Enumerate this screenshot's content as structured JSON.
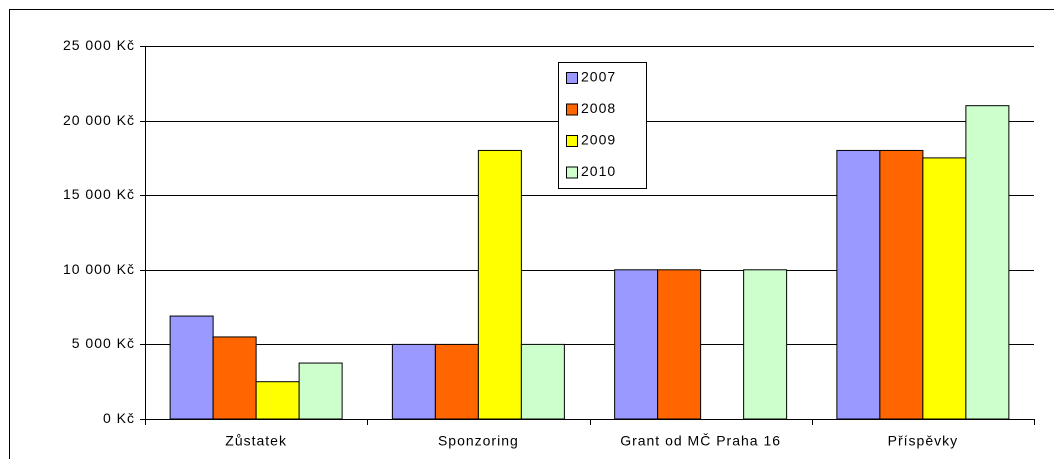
{
  "chart_data": {
    "type": "bar",
    "categories": [
      "Zůstatek",
      "Sponzoring",
      "Grant od MČ Praha 16",
      "Příspěvky"
    ],
    "series": [
      {
        "name": "2007",
        "color": "#9999ff",
        "values": [
          6900,
          5000,
          10000,
          18000
        ]
      },
      {
        "name": "2008",
        "color": "#ff6600",
        "values": [
          5500,
          5000,
          10000,
          18000
        ]
      },
      {
        "name": "2009",
        "color": "#ffff00",
        "values": [
          2500,
          18000,
          0,
          17500
        ]
      },
      {
        "name": "2010",
        "color": "#ccffcc",
        "values": [
          3750,
          5000,
          10000,
          21000
        ]
      }
    ],
    "ylim": [
      0,
      25000
    ],
    "yticks": [
      {
        "value": 0,
        "label": "0 Kč"
      },
      {
        "value": 5000,
        "label": "5 000 Kč"
      },
      {
        "value": 10000,
        "label": "10 000 Kč"
      },
      {
        "value": 15000,
        "label": "15 000 Kč"
      },
      {
        "value": 20000,
        "label": "20 000 Kč"
      },
      {
        "value": 25000,
        "label": "25 000 Kč"
      }
    ],
    "grid": true,
    "legend": "top-center"
  }
}
